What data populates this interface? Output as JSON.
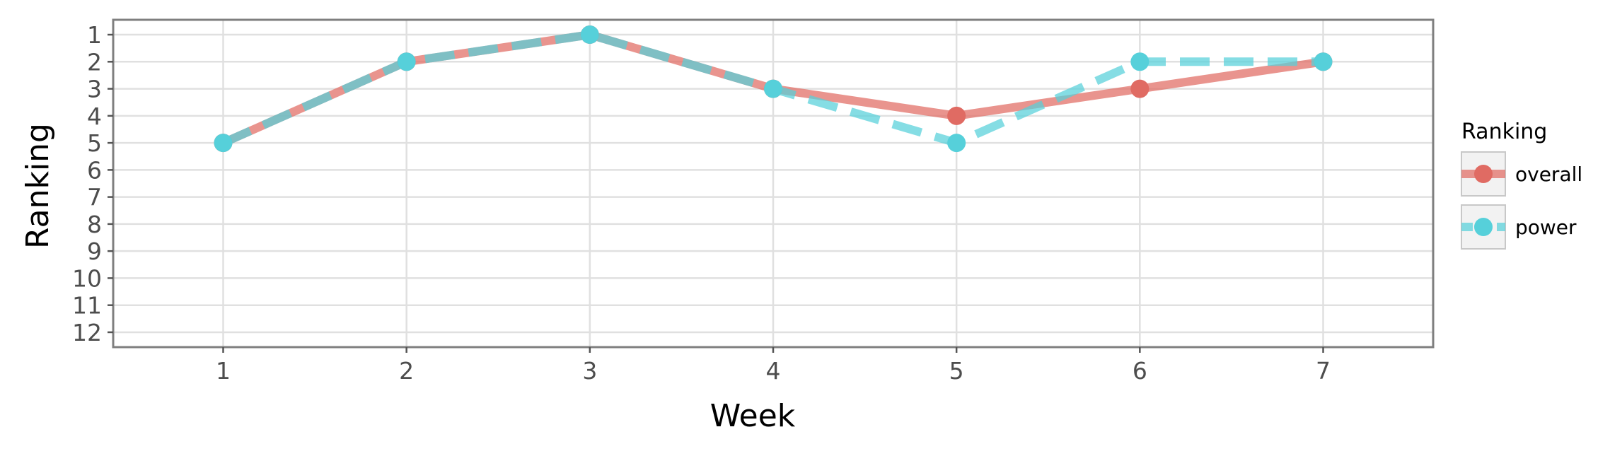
{
  "chart_data": {
    "type": "line",
    "xlabel": "Week",
    "ylabel": "Ranking",
    "x": [
      1,
      2,
      3,
      4,
      5,
      6,
      7
    ],
    "xlim": [
      0.4,
      7.6
    ],
    "ylim": [
      12.55,
      0.45
    ],
    "y_reversed": true,
    "x_ticks": [
      1,
      2,
      3,
      4,
      5,
      6,
      7
    ],
    "y_ticks": [
      1,
      2,
      3,
      4,
      5,
      6,
      7,
      8,
      9,
      10,
      11,
      12
    ],
    "grid": true,
    "legend": {
      "title": "Ranking",
      "position": "right"
    },
    "series": [
      {
        "name": "overall",
        "values": [
          5,
          2,
          1,
          3,
          4,
          3,
          2
        ],
        "color": "#e06b63",
        "line_style": "solid"
      },
      {
        "name": "power",
        "values": [
          5,
          2,
          1,
          3,
          5,
          2,
          2
        ],
        "color": "#56d0da",
        "line_style": "dashed"
      }
    ]
  }
}
